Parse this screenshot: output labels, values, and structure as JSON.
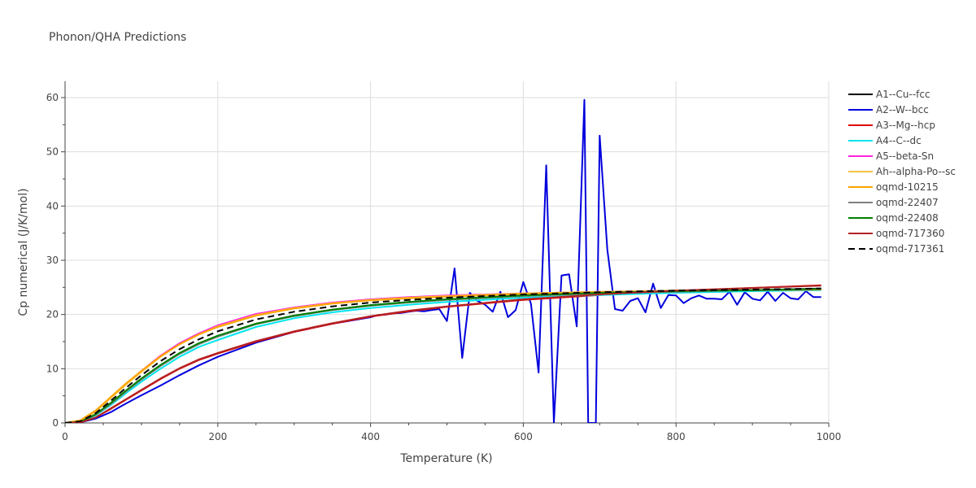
{
  "chart_data": {
    "type": "line",
    "title": "Phonon/QHA Predictions",
    "xlabel": "Temperature (K)",
    "ylabel": "Cp numerical (J/K/mol)",
    "xlim": [
      0,
      1000
    ],
    "ylim": [
      0,
      63
    ],
    "xticks": [
      "0",
      "200",
      "400",
      "600",
      "800",
      "1000"
    ],
    "yticks": [
      "0",
      "10",
      "20",
      "30",
      "40",
      "50",
      "60"
    ],
    "grid": true,
    "legend_position": "right",
    "series": [
      {
        "name": "A1--Cu--fcc",
        "color": "#000000",
        "dash": "solid",
        "x": [
          0,
          20,
          40,
          60,
          80,
          100,
          125,
          150,
          175,
          200,
          250,
          300,
          350,
          400,
          450,
          500,
          600,
          700,
          800,
          900,
          990
        ],
        "y": [
          0,
          0.2,
          1.5,
          3.6,
          5.9,
          8.1,
          10.6,
          12.8,
          14.6,
          16.0,
          18.3,
          19.8,
          20.9,
          21.7,
          22.3,
          22.8,
          23.5,
          23.9,
          24.2,
          24.5,
          24.8
        ]
      },
      {
        "name": "A2--W--bcc",
        "color": "#0000dd",
        "dash": "solid",
        "x": [
          0,
          20,
          40,
          60,
          70,
          80,
          100,
          125,
          150,
          175,
          200,
          250,
          300,
          350,
          380,
          400,
          410,
          420,
          430,
          440,
          450,
          460,
          470,
          480,
          490,
          500,
          510,
          520,
          530,
          540,
          550,
          560,
          570,
          580,
          590,
          600,
          610,
          620,
          630,
          640,
          650,
          660,
          670,
          680,
          685,
          690,
          695,
          700,
          710,
          720,
          730,
          740,
          750,
          760,
          770,
          780,
          790,
          800,
          810,
          820,
          830,
          840,
          850,
          860,
          870,
          880,
          890,
          900,
          910,
          920,
          930,
          940,
          950,
          960,
          970,
          980,
          990
        ],
        "y": [
          0,
          0.1,
          0.8,
          2.0,
          2.8,
          3.6,
          5.1,
          6.9,
          8.8,
          10.6,
          12.2,
          14.8,
          16.8,
          18.3,
          19.0,
          19.5,
          19.9,
          20.0,
          20.2,
          20.3,
          20.5,
          20.7,
          20.6,
          20.8,
          21.0,
          18.8,
          28.5,
          12.0,
          24.0,
          22.5,
          21.8,
          20.5,
          24.2,
          19.5,
          20.8,
          26.0,
          22.0,
          9.3,
          47.5,
          0,
          27.2,
          27.4,
          17.8,
          59.6,
          0,
          0,
          0,
          53.0,
          32.0,
          21.0,
          20.7,
          22.5,
          23.0,
          20.4,
          25.7,
          21.2,
          23.6,
          23.5,
          22.1,
          23.0,
          23.5,
          22.9,
          22.9,
          22.8,
          24.2,
          21.8,
          24.1,
          22.9,
          22.6,
          24.2,
          22.5,
          24.0,
          23.0,
          22.8,
          24.3,
          23.2,
          23.2
        ]
      },
      {
        "name": "A3--Mg--hcp",
        "color": "#dd0000",
        "dash": "solid",
        "x": [
          0,
          20,
          40,
          60,
          80,
          100,
          125,
          150,
          175,
          200,
          250,
          300,
          350,
          400,
          450,
          500,
          600,
          700,
          800,
          900,
          990
        ],
        "y": [
          0,
          0.1,
          1.0,
          2.6,
          4.3,
          6.0,
          8.1,
          10.0,
          11.6,
          12.8,
          15.0,
          16.8,
          18.3,
          19.6,
          20.6,
          21.4,
          22.7,
          23.6,
          24.3,
          24.9,
          25.4
        ]
      },
      {
        "name": "A4--C--dc",
        "color": "#00e5ee",
        "dash": "solid",
        "x": [
          0,
          20,
          40,
          60,
          80,
          100,
          125,
          150,
          175,
          200,
          250,
          300,
          350,
          400,
          450,
          500,
          600,
          700,
          800,
          900,
          990
        ],
        "y": [
          0,
          0.2,
          1.4,
          3.3,
          5.5,
          7.6,
          10.0,
          12.2,
          14.0,
          15.3,
          17.7,
          19.3,
          20.4,
          21.2,
          21.8,
          22.3,
          23.1,
          23.6,
          24.0,
          24.3,
          24.5
        ]
      },
      {
        "name": "A5--beta-Sn",
        "color": "#ff22dd",
        "dash": "solid",
        "x": [
          0,
          20,
          40,
          60,
          80,
          100,
          125,
          150,
          175,
          200,
          250,
          300,
          350,
          400,
          450,
          500,
          600,
          700,
          800,
          900,
          990
        ],
        "y": [
          0,
          0.4,
          2.2,
          4.7,
          7.2,
          9.6,
          12.4,
          14.7,
          16.5,
          18.0,
          20.1,
          21.3,
          22.2,
          22.8,
          23.2,
          23.5,
          23.9,
          24.2,
          24.4,
          24.5,
          24.6
        ]
      },
      {
        "name": "Ah--alpha-Po--sc",
        "color": "#f5c242",
        "dash": "solid",
        "x": [
          0,
          20,
          40,
          60,
          80,
          100,
          125,
          150,
          175,
          200,
          250,
          300,
          350,
          400,
          450,
          500,
          600,
          700,
          800,
          900,
          990
        ],
        "y": [
          0,
          0.4,
          2.1,
          4.6,
          7.1,
          9.4,
          12.2,
          14.5,
          16.3,
          17.8,
          19.9,
          21.2,
          22.1,
          22.7,
          23.1,
          23.4,
          23.9,
          24.2,
          24.4,
          24.5,
          24.6
        ]
      },
      {
        "name": "oqmd-10215",
        "color": "#ffa500",
        "dash": "solid",
        "x": [
          0,
          20,
          40,
          60,
          80,
          100,
          125,
          150,
          175,
          200,
          250,
          300,
          350,
          400,
          450,
          500,
          600,
          700,
          800,
          900,
          990
        ],
        "y": [
          0,
          0.5,
          2.3,
          4.8,
          7.3,
          9.6,
          12.3,
          14.5,
          16.3,
          17.7,
          19.8,
          21.1,
          22.0,
          22.6,
          23.0,
          23.3,
          23.8,
          24.1,
          24.3,
          24.5,
          24.6
        ]
      },
      {
        "name": "oqmd-22407",
        "color": "#808080",
        "dash": "solid",
        "x": [
          0,
          20,
          40,
          60,
          80,
          100,
          125,
          150,
          175,
          200,
          250,
          300,
          350,
          400,
          450,
          500,
          600,
          700,
          800,
          900,
          990
        ],
        "y": [
          0,
          0.2,
          1.5,
          3.5,
          5.8,
          8.0,
          10.5,
          12.7,
          14.5,
          15.9,
          18.2,
          19.7,
          20.8,
          21.6,
          22.2,
          22.7,
          23.4,
          23.9,
          24.2,
          24.5,
          24.7
        ]
      },
      {
        "name": "oqmd-22408",
        "color": "#008000",
        "dash": "solid",
        "x": [
          0,
          20,
          40,
          60,
          80,
          100,
          125,
          150,
          175,
          200,
          250,
          300,
          350,
          400,
          450,
          500,
          600,
          700,
          800,
          900,
          990
        ],
        "y": [
          0,
          0.2,
          1.6,
          3.7,
          6.0,
          8.2,
          10.7,
          12.9,
          14.7,
          16.1,
          18.3,
          19.8,
          20.9,
          21.7,
          22.3,
          22.8,
          23.5,
          24.0,
          24.3,
          24.5,
          24.7
        ]
      },
      {
        "name": "oqmd-717360",
        "color": "#b22222",
        "dash": "solid",
        "x": [
          0,
          20,
          40,
          60,
          80,
          100,
          125,
          150,
          175,
          200,
          250,
          300,
          350,
          400,
          450,
          500,
          600,
          700,
          800,
          900,
          990
        ],
        "y": [
          0,
          0.1,
          1.0,
          2.7,
          4.4,
          6.1,
          8.2,
          10.1,
          11.7,
          12.9,
          15.1,
          16.9,
          18.4,
          19.7,
          20.7,
          21.5,
          22.8,
          23.7,
          24.4,
          24.9,
          25.3
        ]
      },
      {
        "name": "oqmd-717361",
        "color": "#000000",
        "dash": "dash",
        "x": [
          0,
          20,
          40,
          60,
          80,
          100,
          125,
          150,
          175,
          200,
          250,
          300,
          350,
          400,
          450,
          500,
          600,
          700,
          800,
          900,
          990
        ],
        "y": [
          0,
          0.3,
          1.8,
          4.1,
          6.5,
          8.8,
          11.4,
          13.6,
          15.4,
          16.9,
          19.1,
          20.5,
          21.5,
          22.2,
          22.7,
          23.1,
          23.7,
          24.1,
          24.4,
          24.6,
          24.8
        ]
      }
    ]
  }
}
